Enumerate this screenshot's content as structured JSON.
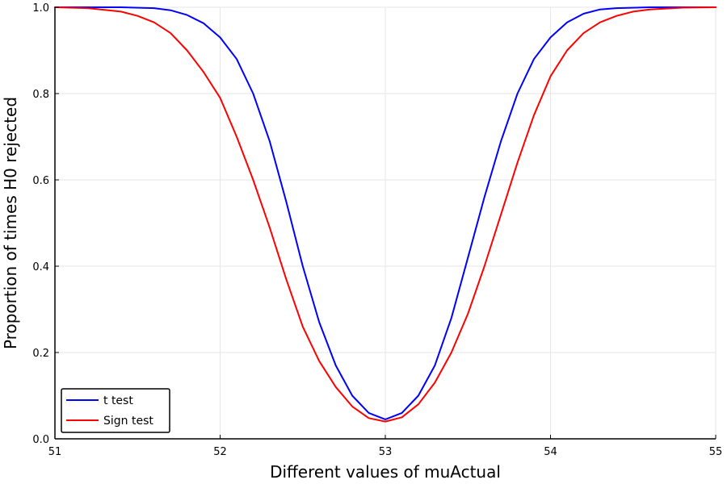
{
  "chart_data": {
    "type": "line",
    "title": "",
    "xlabel": "Different values of muActual",
    "ylabel": "Proportion of times H0 rejected",
    "xlim": [
      51,
      55
    ],
    "ylim": [
      0,
      1
    ],
    "xticks": [
      51,
      52,
      53,
      54,
      55
    ],
    "xtick_labels": [
      "51",
      "52",
      "53",
      "54",
      "55"
    ],
    "yticks": [
      0.0,
      0.2,
      0.4,
      0.6,
      0.8,
      1.0
    ],
    "ytick_labels": [
      "0.0",
      "0.2",
      "0.4",
      "0.6",
      "0.8",
      "1.0"
    ],
    "grid": true,
    "legend_position": "bottom-left",
    "series": [
      {
        "name": "t test",
        "color": "#0000ff",
        "x": [
          51.0,
          51.2,
          51.4,
          51.6,
          51.7,
          51.8,
          51.9,
          52.0,
          52.1,
          52.2,
          52.3,
          52.4,
          52.5,
          52.6,
          52.7,
          52.8,
          52.9,
          53.0,
          53.1,
          53.2,
          53.3,
          53.4,
          53.5,
          53.6,
          53.7,
          53.8,
          53.9,
          54.0,
          54.1,
          54.2,
          54.3,
          54.4,
          54.6,
          54.8,
          55.0
        ],
        "y": [
          1.0,
          1.0,
          1.0,
          0.998,
          0.993,
          0.982,
          0.963,
          0.93,
          0.88,
          0.8,
          0.69,
          0.55,
          0.4,
          0.27,
          0.17,
          0.1,
          0.06,
          0.045,
          0.06,
          0.1,
          0.17,
          0.28,
          0.42,
          0.56,
          0.69,
          0.8,
          0.88,
          0.93,
          0.965,
          0.985,
          0.995,
          0.998,
          1.0,
          1.0,
          1.0
        ]
      },
      {
        "name": "Sign test",
        "color": "#ff0000",
        "x": [
          51.0,
          51.2,
          51.4,
          51.5,
          51.6,
          51.7,
          51.8,
          51.9,
          52.0,
          52.1,
          52.2,
          52.3,
          52.4,
          52.5,
          52.6,
          52.7,
          52.8,
          52.9,
          53.0,
          53.1,
          53.2,
          53.3,
          53.4,
          53.5,
          53.6,
          53.7,
          53.8,
          53.9,
          54.0,
          54.1,
          54.2,
          54.3,
          54.4,
          54.5,
          54.6,
          54.8,
          55.0
        ],
        "y": [
          1.0,
          0.998,
          0.99,
          0.98,
          0.965,
          0.94,
          0.9,
          0.85,
          0.79,
          0.7,
          0.6,
          0.49,
          0.37,
          0.26,
          0.18,
          0.12,
          0.075,
          0.048,
          0.04,
          0.05,
          0.08,
          0.13,
          0.2,
          0.29,
          0.4,
          0.52,
          0.64,
          0.75,
          0.84,
          0.9,
          0.94,
          0.965,
          0.98,
          0.99,
          0.995,
          0.999,
          1.0
        ]
      }
    ]
  }
}
